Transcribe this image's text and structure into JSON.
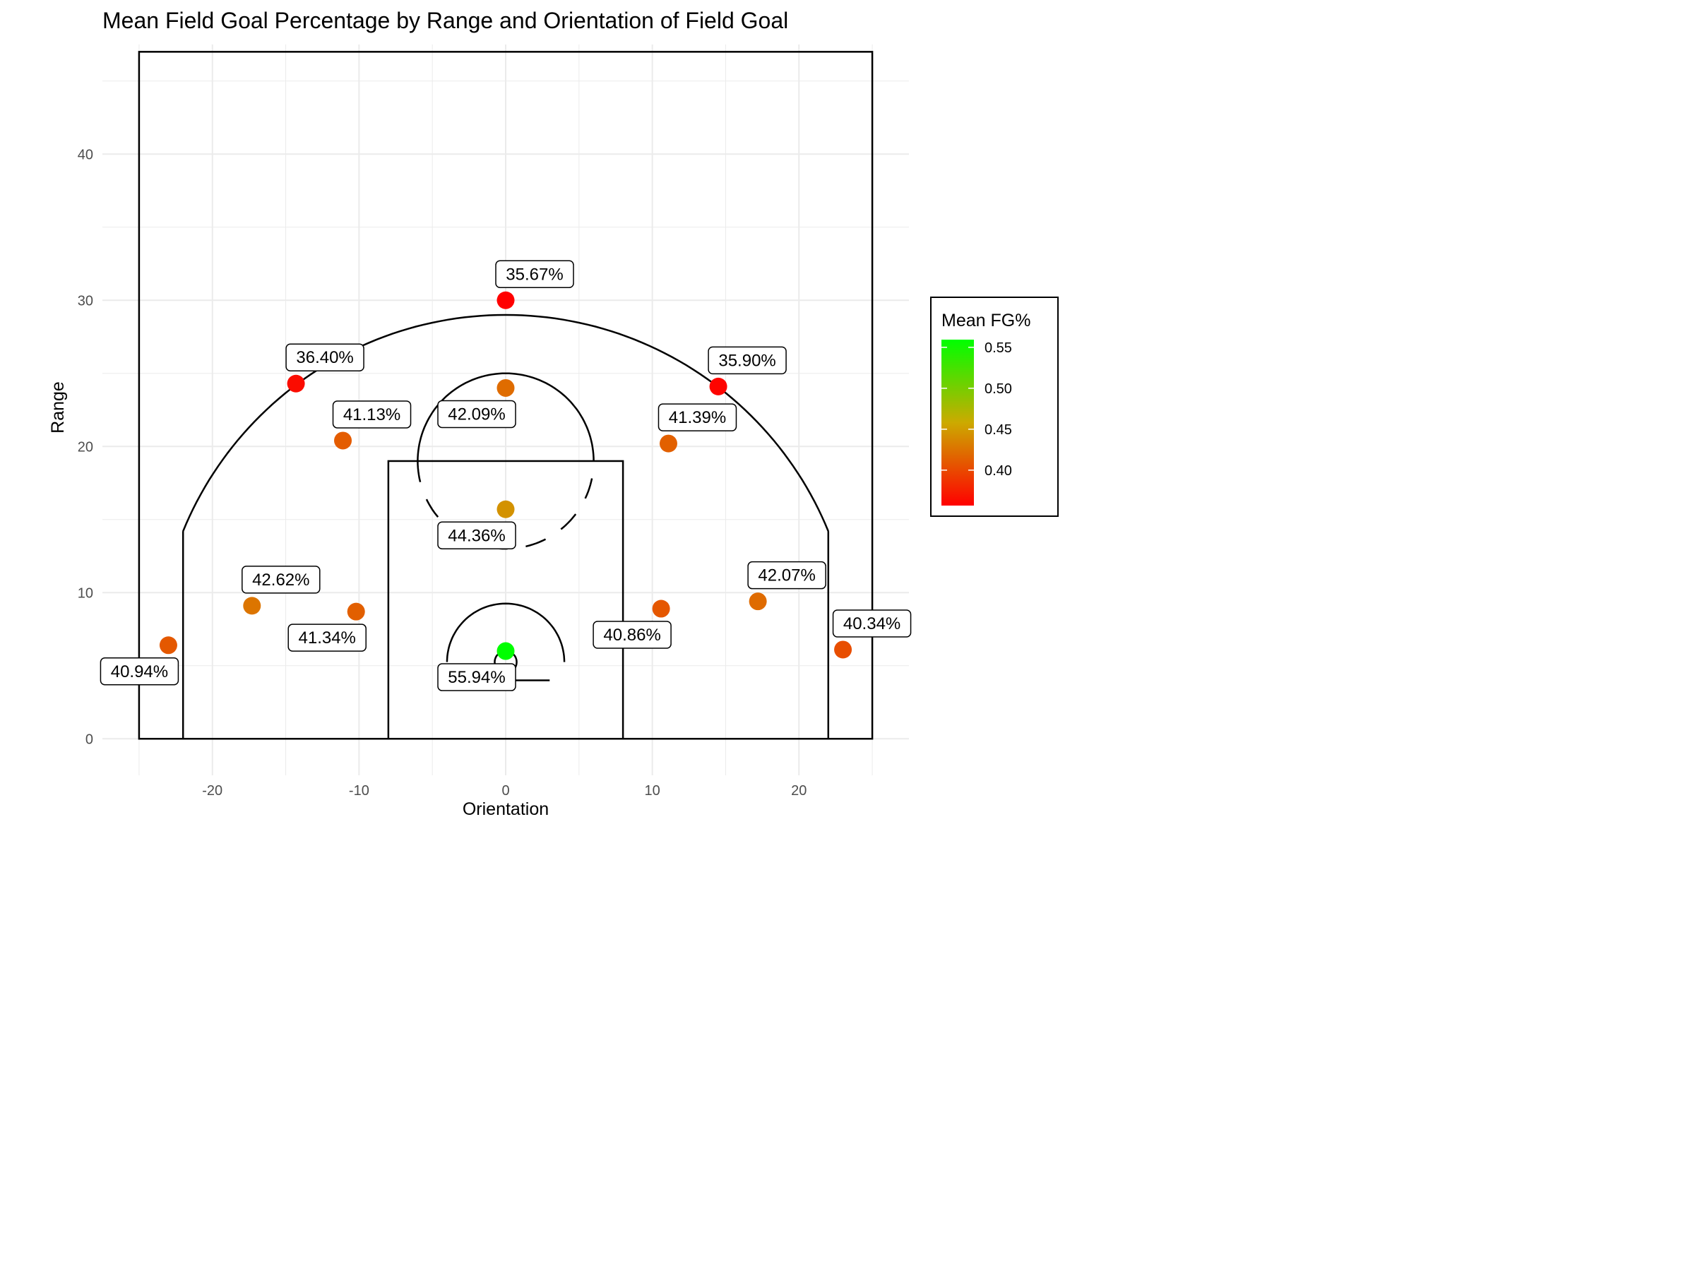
{
  "chart_data": {
    "type": "scatter",
    "title": "Mean Field Goal Percentage by Range and Orientation of Field Goal",
    "xlabel": "Orientation",
    "ylabel": "Range",
    "xlim": [
      -27.5,
      27.5
    ],
    "ylim": [
      -2.5,
      47.5
    ],
    "x_ticks": [
      -20,
      -10,
      0,
      10,
      20
    ],
    "y_ticks": [
      0,
      10,
      20,
      30,
      40
    ],
    "grid": true,
    "legend": {
      "title": "Mean FG%",
      "placement": "right",
      "type": "colorbar",
      "ticks": [
        0.4,
        0.45,
        0.5,
        0.55
      ],
      "tick_labels": [
        "0.40",
        "0.45",
        "0.50",
        "0.55"
      ],
      "range": [
        0.3567,
        0.5594
      ],
      "colors": [
        "#ff0000",
        "#00ff00"
      ]
    },
    "points": [
      {
        "x": 0.0,
        "y": 30.0,
        "value": 0.3567,
        "label": "35.67%"
      },
      {
        "x": -14.3,
        "y": 24.3,
        "value": 0.364,
        "label": "36.40%"
      },
      {
        "x": 14.5,
        "y": 24.1,
        "value": 0.359,
        "label": "35.90%"
      },
      {
        "x": 0.0,
        "y": 24.0,
        "value": 0.4209,
        "label": "42.09%"
      },
      {
        "x": -11.1,
        "y": 20.4,
        "value": 0.4113,
        "label": "41.13%"
      },
      {
        "x": 11.1,
        "y": 20.2,
        "value": 0.4139,
        "label": "41.39%"
      },
      {
        "x": 0.0,
        "y": 15.7,
        "value": 0.4436,
        "label": "44.36%"
      },
      {
        "x": -17.3,
        "y": 9.1,
        "value": 0.4262,
        "label": "42.62%"
      },
      {
        "x": 17.2,
        "y": 9.4,
        "value": 0.4207,
        "label": "42.07%"
      },
      {
        "x": -10.2,
        "y": 8.7,
        "value": 0.4134,
        "label": "41.34%"
      },
      {
        "x": 10.6,
        "y": 8.9,
        "value": 0.4086,
        "label": "40.86%"
      },
      {
        "x": -23.0,
        "y": 6.4,
        "value": 0.4094,
        "label": "40.94%"
      },
      {
        "x": 23.0,
        "y": 6.1,
        "value": 0.4034,
        "label": "40.34%"
      },
      {
        "x": 0.0,
        "y": 6.0,
        "value": 0.5594,
        "label": "55.94%"
      }
    ],
    "court": {
      "baseline_half_width": 25,
      "halfcourt_line": 47,
      "corner_three_x": 22,
      "corner_three_top": 14.2,
      "three_point_radius": 23.75,
      "hoop_y": 5.25,
      "lane_half_width": 8,
      "free_throw_line": 19,
      "free_throw_circle_radius": 6,
      "restricted_area_radius": 4,
      "hoop_radius": 0.75,
      "backboard_half_width": 3,
      "backboard_y": 4
    }
  }
}
